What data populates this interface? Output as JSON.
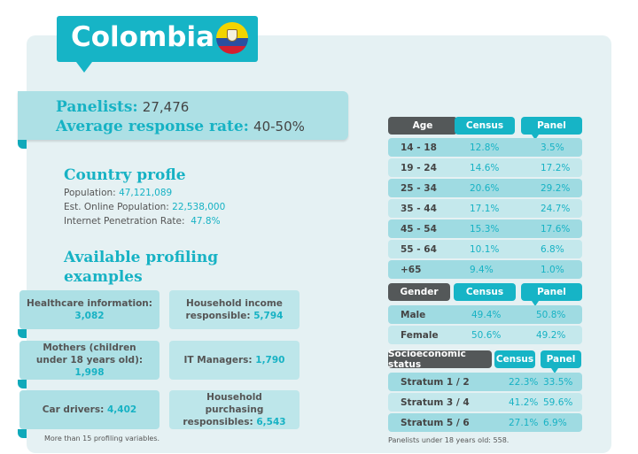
{
  "title": "Colombia",
  "flag_icon": "colombia-flag-icon",
  "summary": {
    "panelists_label": "Panelists:",
    "panelists_value": "27,476",
    "response_label": "Average response rate:",
    "response_value": "40-50%"
  },
  "country_profile": {
    "heading": "Country profle",
    "population_label": "Population:",
    "population_value": "47,121,089",
    "online_label": "Est. Online Population:",
    "online_value": "22,538,000",
    "penetration_label": "Internet Penetration Rate:",
    "penetration_value": "47.8%"
  },
  "profiling": {
    "heading_line1": "Available profiling",
    "heading_line2": "examples",
    "cards": [
      {
        "label": "Healthcare information:",
        "value": "3,082"
      },
      {
        "label": "Household income responsible:",
        "value": "5,794"
      },
      {
        "label": "Mothers (children under 18 years old):",
        "value": "1,998"
      },
      {
        "label": "IT Managers:",
        "value": "1,790"
      },
      {
        "label": "Car drivers:",
        "value": "4,402"
      },
      {
        "label": "Household purchasing responsibles:",
        "value": "6,543"
      }
    ],
    "note": "More than 15 profiling variables."
  },
  "age_table": {
    "headers": [
      "Age",
      "Census",
      "Panel"
    ],
    "rows": [
      [
        "14 - 18",
        "12.8%",
        "3.5%"
      ],
      [
        "19 - 24",
        "14.6%",
        "17.2%"
      ],
      [
        "25 - 34",
        "20.6%",
        "29.2%"
      ],
      [
        "35 - 44",
        "17.1%",
        "24.7%"
      ],
      [
        "45 - 54",
        "15.3%",
        "17.6%"
      ],
      [
        "55 - 64",
        "10.1%",
        "6.8%"
      ],
      [
        "+65",
        "9.4%",
        "1.0%"
      ]
    ]
  },
  "gender_table": {
    "headers": [
      "Gender",
      "Census",
      "Panel"
    ],
    "rows": [
      [
        "Male",
        "49.4%",
        "50.8%"
      ],
      [
        "Female",
        "50.6%",
        "49.2%"
      ]
    ]
  },
  "socio_table": {
    "headers": [
      "Socioeconomic status",
      "Census",
      "Panel"
    ],
    "rows": [
      [
        "Stratum 1 / 2",
        "22.3%",
        "33.5%"
      ],
      [
        "Stratum 3 / 4",
        "41.2%",
        "59.6%"
      ],
      [
        "Stratum 5 / 6",
        "27.1%",
        "6.9%"
      ]
    ]
  },
  "table_note": "Panelists under 18 years old: 558."
}
